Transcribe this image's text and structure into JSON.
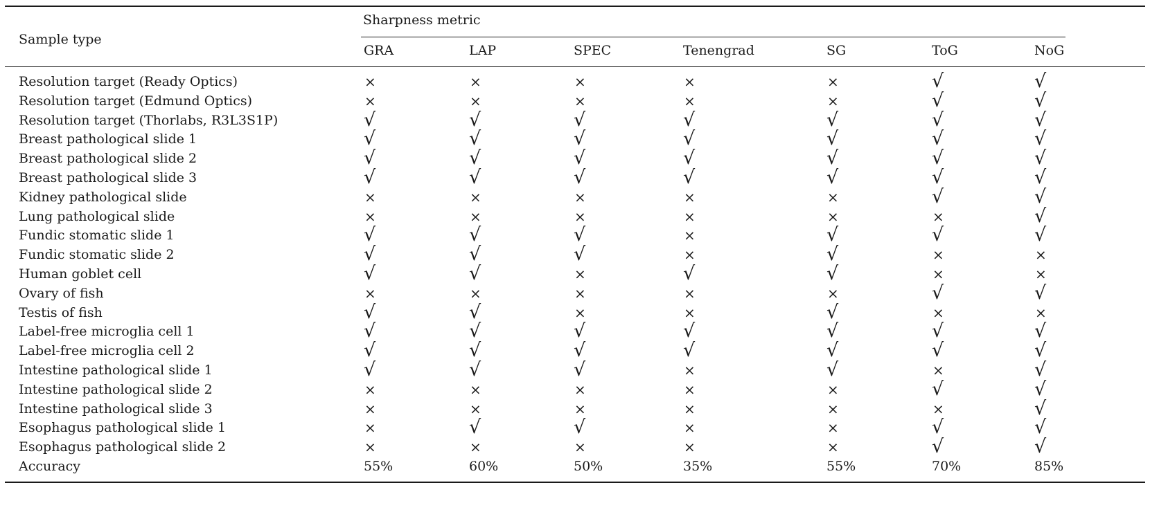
{
  "header": {
    "sample_type": "Sample type",
    "group": "Sharpness metric",
    "metrics": [
      "GRA",
      "LAP",
      "SPEC",
      "Tenengrad",
      "SG",
      "ToG",
      "NoG"
    ]
  },
  "symbols": {
    "yes": "√",
    "no": "×"
  },
  "rows": [
    {
      "sample": "Resolution target (Ready Optics)",
      "marks": [
        0,
        0,
        0,
        0,
        0,
        1,
        1
      ]
    },
    {
      "sample": "Resolution target (Edmund Optics)",
      "marks": [
        0,
        0,
        0,
        0,
        0,
        1,
        1
      ]
    },
    {
      "sample": "Resolution target (Thorlabs, R3L3S1P)",
      "marks": [
        1,
        1,
        1,
        1,
        1,
        1,
        1
      ]
    },
    {
      "sample": "Breast pathological slide 1",
      "marks": [
        1,
        1,
        1,
        1,
        1,
        1,
        1
      ]
    },
    {
      "sample": "Breast pathological slide 2",
      "marks": [
        1,
        1,
        1,
        1,
        1,
        1,
        1
      ]
    },
    {
      "sample": "Breast pathological slide 3",
      "marks": [
        1,
        1,
        1,
        1,
        1,
        1,
        1
      ]
    },
    {
      "sample": "Kidney pathological slide",
      "marks": [
        0,
        0,
        0,
        0,
        0,
        1,
        1
      ]
    },
    {
      "sample": "Lung pathological slide",
      "marks": [
        0,
        0,
        0,
        0,
        0,
        0,
        1
      ]
    },
    {
      "sample": "Fundic stomatic slide 1",
      "marks": [
        1,
        1,
        1,
        0,
        1,
        1,
        1
      ]
    },
    {
      "sample": "Fundic stomatic slide 2",
      "marks": [
        1,
        1,
        1,
        0,
        1,
        0,
        0
      ]
    },
    {
      "sample": "Human goblet cell",
      "marks": [
        1,
        1,
        0,
        1,
        1,
        0,
        0
      ]
    },
    {
      "sample": "Ovary of fish",
      "marks": [
        0,
        0,
        0,
        0,
        0,
        1,
        1
      ]
    },
    {
      "sample": "Testis of fish",
      "marks": [
        1,
        1,
        0,
        0,
        1,
        0,
        0
      ]
    },
    {
      "sample": "Label-free microglia cell 1",
      "marks": [
        1,
        1,
        1,
        1,
        1,
        1,
        1
      ]
    },
    {
      "sample": "Label-free microglia cell 2",
      "marks": [
        1,
        1,
        1,
        1,
        1,
        1,
        1
      ]
    },
    {
      "sample": "Intestine pathological slide 1",
      "marks": [
        1,
        1,
        1,
        0,
        1,
        0,
        1
      ]
    },
    {
      "sample": "Intestine pathological slide 2",
      "marks": [
        0,
        0,
        0,
        0,
        0,
        1,
        1
      ]
    },
    {
      "sample": "Intestine pathological slide 3",
      "marks": [
        0,
        0,
        0,
        0,
        0,
        0,
        1
      ]
    },
    {
      "sample": "Esophagus pathological slide 1",
      "marks": [
        0,
        1,
        1,
        0,
        0,
        1,
        1
      ]
    },
    {
      "sample": "Esophagus pathological slide 2",
      "marks": [
        0,
        0,
        0,
        0,
        0,
        1,
        1
      ]
    }
  ],
  "accuracy": {
    "label": "Accuracy",
    "values": [
      "55%",
      "60%",
      "50%",
      "35%",
      "55%",
      "70%",
      "85%"
    ]
  }
}
